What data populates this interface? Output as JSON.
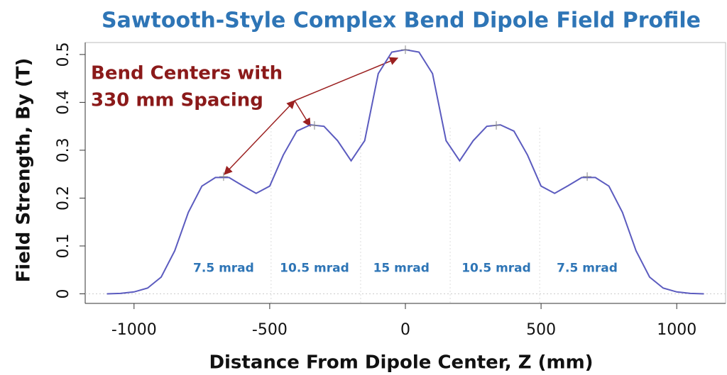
{
  "chart_data": {
    "type": "line",
    "title": "Sawtooth-Style Complex Bend Dipole Field Profile",
    "xlabel": "Distance From Dipole Center, Z (mm)",
    "ylabel": "Field Strength, By (T)",
    "xlim": [
      -1180,
      1180
    ],
    "ylim": [
      -0.02,
      0.525
    ],
    "xticks": [
      -1000,
      -500,
      0,
      500,
      1000
    ],
    "yticks": [
      0,
      0.1,
      0.2,
      0.3,
      0.4,
      0.5
    ],
    "x": [
      -1100,
      -1050,
      -1000,
      -950,
      -900,
      -850,
      -800,
      -750,
      -700,
      -650,
      -600,
      -550,
      -500,
      -450,
      -400,
      -350,
      -300,
      -250,
      -200,
      -150,
      -100,
      -50,
      0,
      50,
      100,
      150,
      200,
      250,
      300,
      350,
      400,
      450,
      500,
      550,
      600,
      650,
      700,
      750,
      800,
      850,
      900,
      950,
      1000,
      1050,
      1100
    ],
    "series": [
      {
        "name": "By",
        "color": "#5b5bbf",
        "values": [
          0,
          0.001,
          0.004,
          0.012,
          0.035,
          0.09,
          0.17,
          0.225,
          0.243,
          0.243,
          0.226,
          0.21,
          0.225,
          0.29,
          0.34,
          0.353,
          0.35,
          0.32,
          0.278,
          0.32,
          0.46,
          0.505,
          0.51,
          0.505,
          0.46,
          0.32,
          0.278,
          0.32,
          0.35,
          0.353,
          0.34,
          0.29,
          0.225,
          0.21,
          0.226,
          0.243,
          0.243,
          0.225,
          0.17,
          0.09,
          0.035,
          0.012,
          0.004,
          0.001,
          0
        ]
      }
    ],
    "markers": {
      "x": [
        -670,
        -335,
        0,
        335,
        670
      ],
      "y": [
        0.245,
        0.352,
        0.51,
        0.352,
        0.245
      ]
    },
    "region_boundaries": [
      -495,
      -165,
      165,
      495
    ],
    "regions": {
      "labels": [
        "7.5 mrad",
        "10.5 mrad",
        "15 mrad",
        "10.5 mrad",
        "7.5 mrad"
      ],
      "x": [
        -670,
        -335,
        -15,
        335,
        670
      ],
      "y": 0.053
    },
    "annotation": [
      "Bend Centers with",
      "330 mm Spacing"
    ]
  }
}
